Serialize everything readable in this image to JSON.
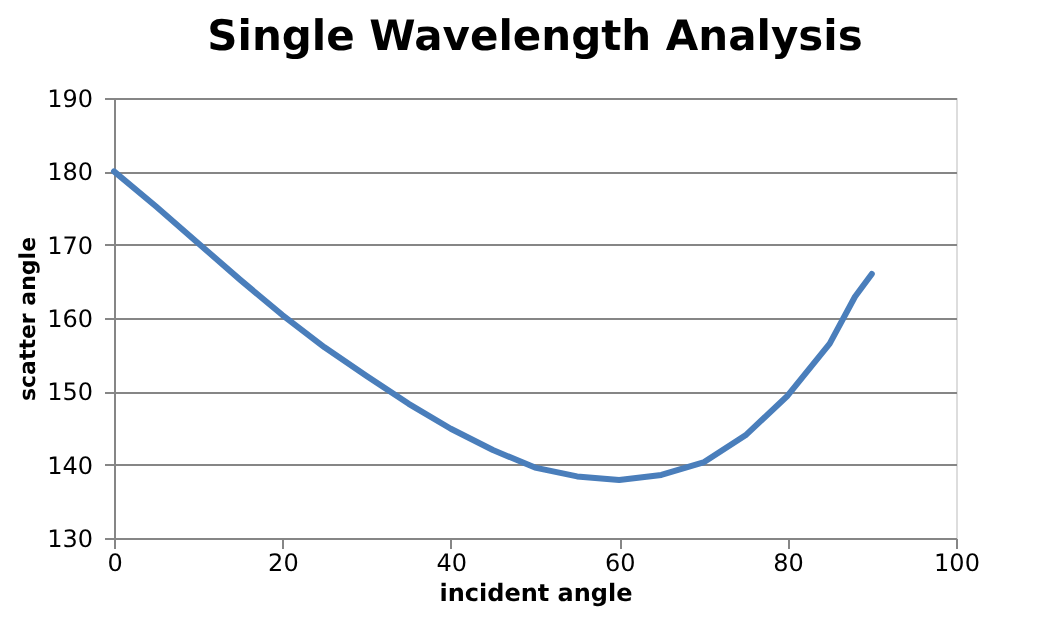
{
  "chart_data": {
    "type": "line",
    "title": "Single Wavelength Analysis",
    "xlabel": "incident angle",
    "ylabel": "scatter angle",
    "series": [
      {
        "color": "#4a7ebb",
        "x": [
          0,
          5,
          10,
          15,
          20,
          25,
          30,
          35,
          40,
          45,
          50,
          55,
          60,
          65,
          70,
          75,
          80,
          85,
          88,
          90
        ],
        "values": [
          180,
          175.2,
          170.2,
          165.2,
          160.4,
          156,
          152.1,
          148.3,
          144.9,
          142,
          139.6,
          138.4,
          137.9,
          138.6,
          140.3,
          144,
          149.4,
          156.5,
          162.9,
          166
        ]
      }
    ],
    "xlim": [
      0,
      100
    ],
    "xticks": [
      0,
      20,
      40,
      60,
      80,
      100
    ],
    "ylim": [
      130,
      190
    ],
    "yticks": [
      130,
      140,
      150,
      160,
      170,
      180,
      190
    ],
    "grid": "y",
    "marker": "none",
    "line_style": "solid"
  }
}
